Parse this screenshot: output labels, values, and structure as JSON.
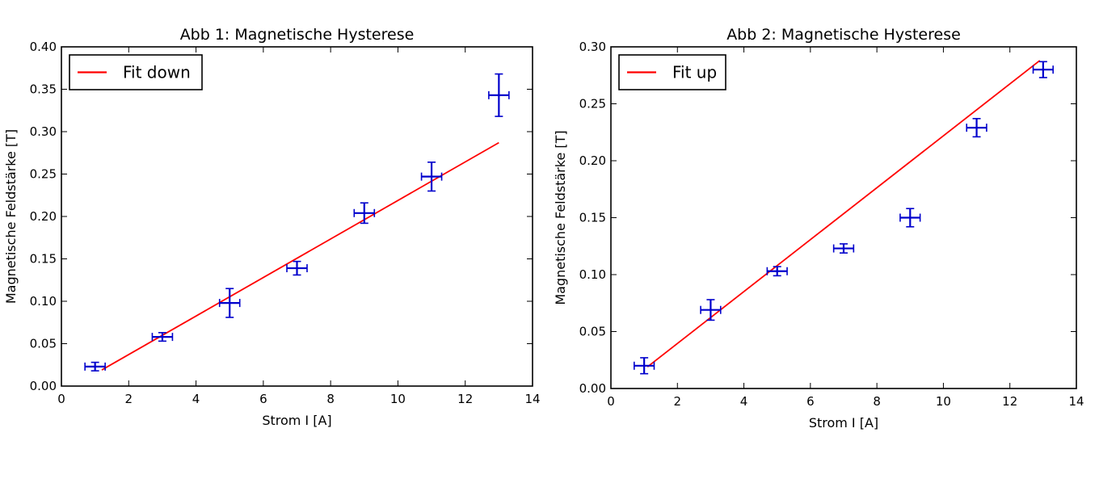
{
  "chart_data": [
    {
      "type": "scatter",
      "title": "Abb 1: Magnetische Hysterese",
      "xlabel": "Strom I [A]",
      "ylabel": "Magnetische Feldstärke [T]",
      "xlim": [
        0,
        14
      ],
      "ylim": [
        0,
        0.4
      ],
      "xticks": [
        "0",
        "2",
        "4",
        "6",
        "8",
        "10",
        "12",
        "14"
      ],
      "yticks": [
        "0.00",
        "0.05",
        "0.10",
        "0.15",
        "0.20",
        "0.25",
        "0.30",
        "0.35",
        "0.40"
      ],
      "grid": false,
      "legend": {
        "position": "top-left",
        "entries": [
          "Fit down"
        ]
      },
      "colors": {
        "data": "#0000cc",
        "fit": "#ff0000"
      },
      "series": [
        {
          "kind": "errorbar",
          "x": [
            1,
            3,
            5,
            7,
            9,
            11,
            13
          ],
          "y": [
            0.023,
            0.058,
            0.098,
            0.139,
            0.204,
            0.247,
            0.343
          ],
          "xerr": [
            0.3,
            0.3,
            0.3,
            0.3,
            0.3,
            0.3,
            0.3
          ],
          "yerr": [
            0.005,
            0.005,
            0.017,
            0.008,
            0.012,
            0.017,
            0.025
          ]
        },
        {
          "kind": "line",
          "name": "Fit down",
          "x": [
            1.2,
            13
          ],
          "y": [
            0.019,
            0.287
          ]
        }
      ]
    },
    {
      "type": "scatter",
      "title": "Abb 2: Magnetische Hysterese",
      "xlabel": "Strom I [A]",
      "ylabel": "Magnetische Feldstärke [T]",
      "xlim": [
        0,
        14
      ],
      "ylim": [
        0,
        0.3
      ],
      "xticks": [
        "0",
        "2",
        "4",
        "6",
        "8",
        "10",
        "12",
        "14"
      ],
      "yticks": [
        "0.00",
        "0.05",
        "0.10",
        "0.15",
        "0.20",
        "0.25",
        "0.30"
      ],
      "grid": false,
      "legend": {
        "position": "top-left",
        "entries": [
          "Fit up"
        ]
      },
      "colors": {
        "data": "#0000cc",
        "fit": "#ff0000"
      },
      "series": [
        {
          "kind": "errorbar",
          "x": [
            1,
            3,
            5,
            7,
            9,
            11,
            13
          ],
          "y": [
            0.02,
            0.069,
            0.103,
            0.123,
            0.15,
            0.229,
            0.28
          ],
          "xerr": [
            0.3,
            0.3,
            0.3,
            0.3,
            0.3,
            0.3,
            0.3
          ],
          "yerr": [
            0.007,
            0.009,
            0.004,
            0.004,
            0.008,
            0.008,
            0.007
          ]
        },
        {
          "kind": "line",
          "name": "Fit up",
          "x": [
            1.1,
            12.9
          ],
          "y": [
            0.019,
            0.288
          ]
        }
      ]
    }
  ]
}
